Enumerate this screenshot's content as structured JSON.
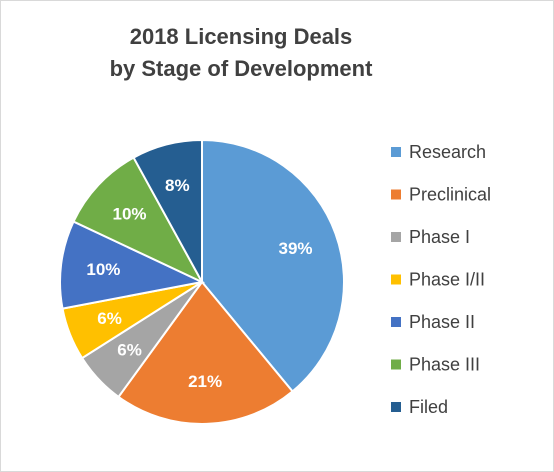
{
  "chart_data": {
    "type": "pie",
    "title": "2018 Licensing Deals by Stage of Development",
    "title_lines": [
      "2018 Licensing Deals",
      "by Stage of Development"
    ],
    "categories": [
      "Research",
      "Preclinical",
      "Phase I",
      "Phase I/II",
      "Phase II",
      "Phase III",
      "Filed"
    ],
    "values": [
      39,
      21,
      6,
      6,
      10,
      10,
      8
    ],
    "data_labels": [
      "39%",
      "21%",
      "6%",
      "6%",
      "10%",
      "10%",
      "8%"
    ],
    "colors": [
      "#5b9bd5",
      "#ed7d31",
      "#a5a5a5",
      "#ffc000",
      "#4472c4",
      "#70ad47",
      "#255e91"
    ],
    "start_angle_deg": 0,
    "direction": "clockwise",
    "legend_position": "right"
  }
}
